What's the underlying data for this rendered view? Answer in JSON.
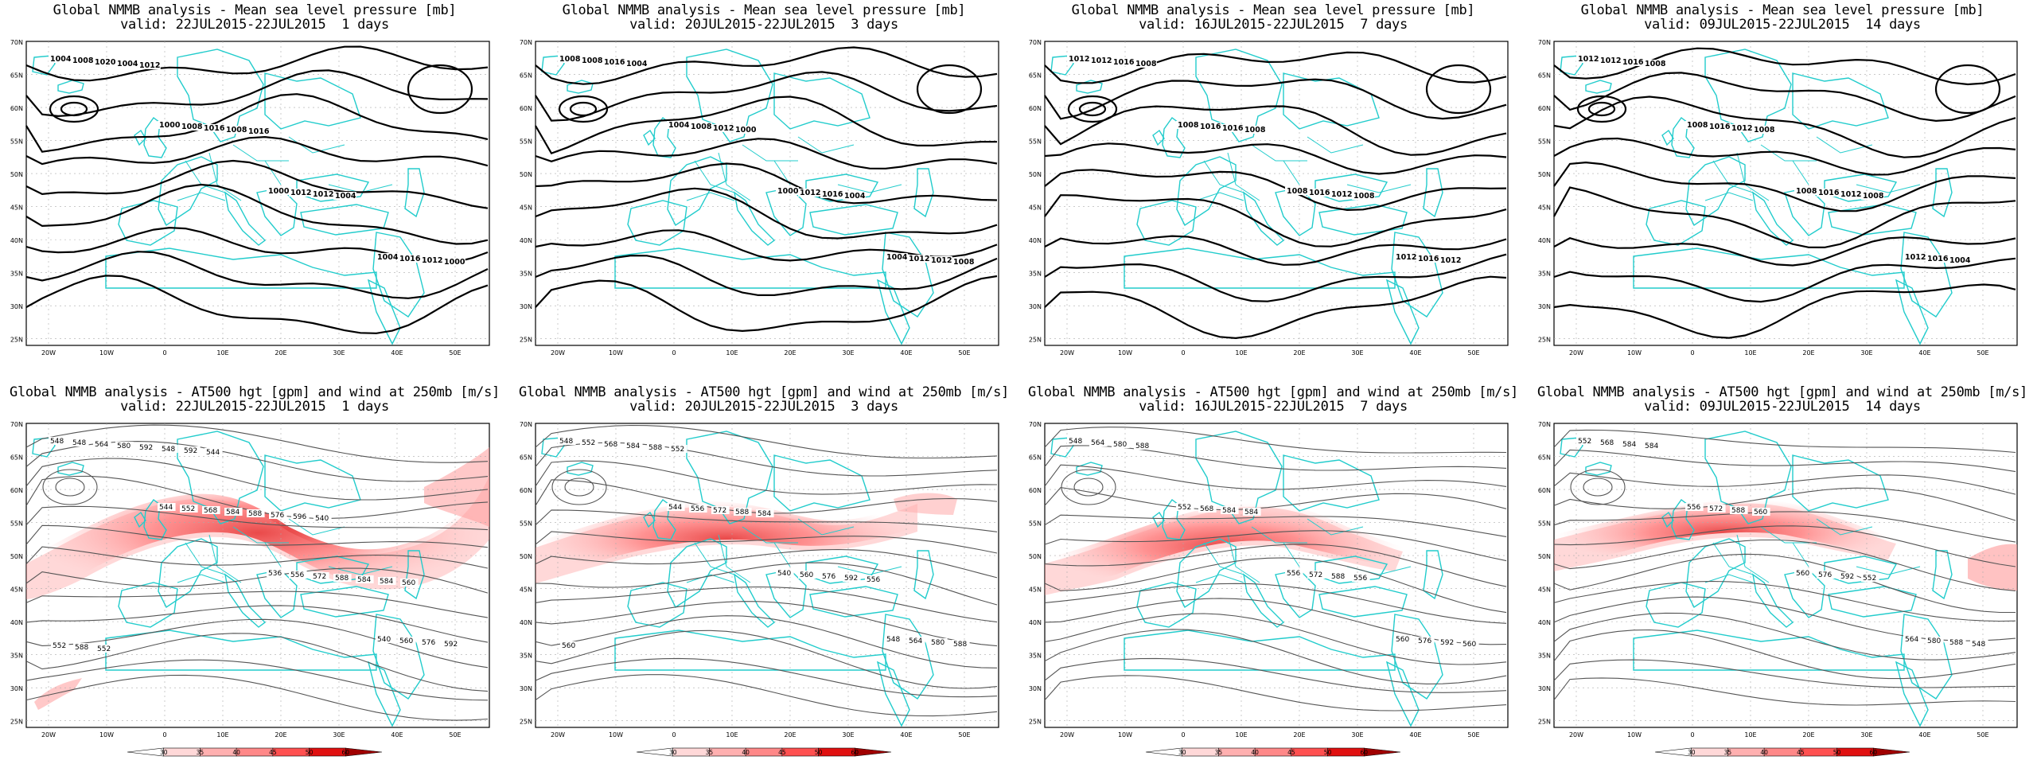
{
  "top_title": "Global NMMB analysis - Mean sea level pressure [mb]",
  "bottom_title": "Global NMMB analysis - AT500 hgt [gpm] and wind at 250mb [m/s]",
  "panels": [
    {
      "id": "mslp-1d",
      "row": "top",
      "valid": "valid: 22JUL2015-22JUL2015  1 days"
    },
    {
      "id": "mslp-3d",
      "row": "top",
      "valid": "valid: 20JUL2015-22JUL2015  3 days"
    },
    {
      "id": "mslp-7d",
      "row": "top",
      "valid": "valid: 16JUL2015-22JUL2015  7 days"
    },
    {
      "id": "mslp-14d",
      "row": "top",
      "valid": "valid: 09JUL2015-22JUL2015  14 days"
    },
    {
      "id": "z500-1d",
      "row": "bottom",
      "valid": "valid: 22JUL2015-22JUL2015  1 days"
    },
    {
      "id": "z500-3d",
      "row": "bottom",
      "valid": "valid: 20JUL2015-22JUL2015  3 days"
    },
    {
      "id": "z500-7d",
      "row": "bottom",
      "valid": "valid: 16JUL2015-22JUL2015  7 days"
    },
    {
      "id": "z500-14d",
      "row": "bottom",
      "valid": "valid: 09JUL2015-22JUL2015  14 days"
    }
  ],
  "lat_labels": [
    "70N",
    "65N",
    "60N",
    "55N",
    "50N",
    "45N",
    "40N",
    "35N",
    "30N",
    "25N"
  ],
  "lon_labels": [
    "20W",
    "10W",
    "0",
    "10E",
    "20E",
    "30E",
    "40E",
    "50E"
  ],
  "mslp_contours": {
    "mslp-1d": [
      "1004",
      "1000",
      "1000",
      "1004",
      "1008",
      "1008",
      "1012",
      "1016",
      "1020",
      "1016",
      "1012",
      "1012",
      "1004",
      "1008",
      "1004",
      "1000",
      "1012",
      "1016"
    ],
    "mslp-3d": [
      "1008",
      "1004",
      "1000",
      "1004",
      "1008",
      "1008",
      "1012",
      "1012",
      "1016",
      "1012",
      "1016",
      "1012",
      "1004",
      "1000",
      "1004",
      "1008"
    ],
    "mslp-7d": [
      "1012",
      "1008",
      "1008",
      "1012",
      "1012",
      "1016",
      "1016",
      "1016",
      "1016",
      "1016",
      "1012",
      "1012",
      "1008",
      "1008",
      "1008"
    ],
    "mslp-14d": [
      "1012",
      "1008",
      "1008",
      "1012",
      "1012",
      "1016",
      "1016",
      "1016",
      "1016",
      "1012",
      "1012",
      "1004",
      "1008",
      "1008",
      "1008"
    ]
  },
  "z500_contours": {
    "z500-1d": [
      "548",
      "544",
      "536",
      "540",
      "548",
      "552",
      "556",
      "560",
      "564",
      "568",
      "572",
      "576",
      "580",
      "584",
      "588",
      "592",
      "592",
      "588",
      "584",
      "552",
      "548",
      "576",
      "584",
      "588",
      "592",
      "596",
      "560",
      "552",
      "544",
      "540"
    ],
    "z500-3d": [
      "548",
      "544",
      "540",
      "548",
      "552",
      "556",
      "560",
      "564",
      "568",
      "572",
      "576",
      "580",
      "584",
      "588",
      "592",
      "588",
      "588",
      "584",
      "556",
      "560",
      "552"
    ],
    "z500-7d": [
      "548",
      "552",
      "556",
      "560",
      "564",
      "568",
      "572",
      "576",
      "580",
      "584",
      "588",
      "592",
      "588",
      "584",
      "556",
      "560"
    ],
    "z500-14d": [
      "552",
      "556",
      "560",
      "564",
      "568",
      "572",
      "576",
      "580",
      "584",
      "588",
      "592",
      "588",
      "584",
      "560",
      "552",
      "548"
    ]
  },
  "colorbar": {
    "ticks": [
      "30",
      "35",
      "40",
      "45",
      "50",
      "60"
    ],
    "colors": [
      "#ffffff",
      "#ffd8d8",
      "#ffb0b0",
      "#ff8888",
      "#ff5050",
      "#e01010",
      "#a00000"
    ]
  },
  "colors": {
    "coast": "#22cccc",
    "contour": "#000000",
    "z500_contour": "#555555",
    "grid": "#aaaaaa"
  }
}
